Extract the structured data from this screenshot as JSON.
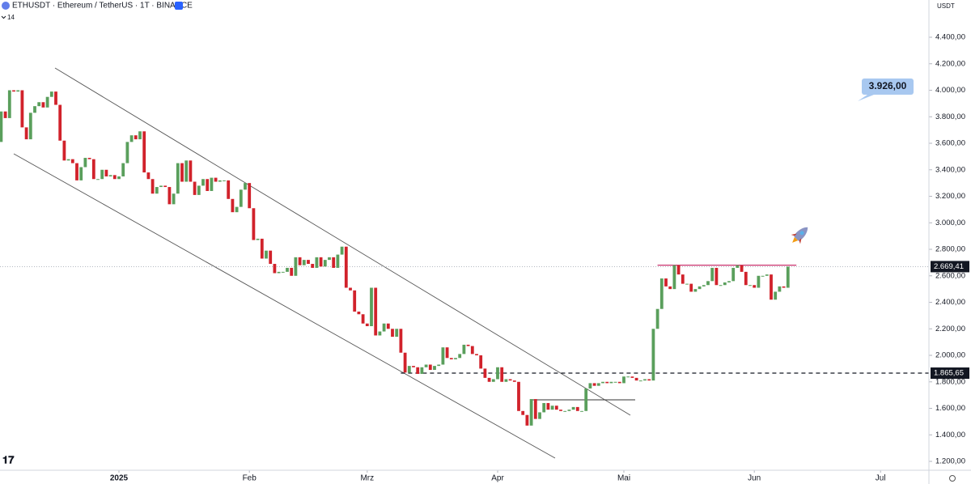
{
  "chart_data": {
    "type": "candlestick",
    "title": "ETHUSDT · Ethereum / TetherUS · 1T · BINANCE",
    "indicator_label": "14",
    "currency": "USDT",
    "up_color": "#5a9f5c",
    "down_color": "#d1222b",
    "open": [
      3610,
      3840,
      3790,
      4000,
      3990,
      4000,
      3720,
      3630,
      3830,
      3880,
      3910,
      3870,
      3950,
      3990,
      3890,
      3620,
      3470,
      3480,
      3450,
      3320,
      3420,
      3490,
      3480,
      3330,
      3330,
      3400,
      3350,
      3360,
      3330,
      3350,
      3450,
      3610,
      3660,
      3630,
      3690,
      3380,
      3330,
      3220,
      3270,
      3280,
      3270,
      3140,
      3220,
      3450,
      3310,
      3470,
      3310,
      3210,
      3280,
      3330,
      3240,
      3340,
      3310,
      3320,
      3320,
      3180,
      3080,
      3120,
      3250,
      3300,
      3110,
      2870,
      2880,
      2730,
      2790,
      2690,
      2620,
      2630,
      2630,
      2660,
      2600,
      2740,
      2680,
      2720,
      2690,
      2660,
      2740,
      2670,
      2720,
      2740,
      2660,
      2760,
      2820,
      2510,
      2490,
      2330,
      2310,
      2240,
      2220,
      2510,
      2150,
      2180,
      2240,
      2200,
      2140,
      2200,
      2020,
      1870,
      1920,
      1910,
      1860,
      1910,
      1930,
      1890,
      1920,
      1930,
      2060,
      1980,
      1970,
      1980,
      2010,
      2080,
      2070,
      2010,
      2000,
      1900,
      1830,
      1800,
      1820,
      1910,
      1800,
      1820,
      1810,
      1800,
      1580,
      1550,
      1470,
      1670,
      1520,
      1570,
      1640,
      1590,
      1620,
      1590,
      1580,
      1580,
      1590,
      1610,
      1580,
      1580,
      1750,
      1790,
      1770,
      1790,
      1800,
      1790,
      1800,
      1800,
      1790,
      1840,
      1840,
      1830,
      1810,
      1810,
      1820,
      1810,
      2200,
      2350,
      2580,
      2520,
      2500,
      2680,
      2610,
      2540,
      2540,
      2480,
      2500,
      2520,
      2530,
      2560,
      2660,
      2530,
      2530,
      2550,
      2560,
      2660,
      2680,
      2630,
      2530,
      2530,
      2510,
      2600,
      2600,
      2610,
      2420,
      2480,
      2520,
      2510
    ],
    "close": [
      3840,
      3790,
      4000,
      3990,
      4000,
      3720,
      3630,
      3830,
      3880,
      3910,
      3870,
      3950,
      3990,
      3890,
      3620,
      3470,
      3480,
      3450,
      3320,
      3420,
      3490,
      3480,
      3330,
      3330,
      3400,
      3350,
      3360,
      3330,
      3350,
      3450,
      3610,
      3660,
      3630,
      3690,
      3380,
      3330,
      3220,
      3270,
      3280,
      3270,
      3140,
      3220,
      3450,
      3310,
      3470,
      3310,
      3210,
      3280,
      3330,
      3240,
      3340,
      3310,
      3320,
      3320,
      3180,
      3080,
      3120,
      3250,
      3300,
      3110,
      2870,
      2880,
      2730,
      2790,
      2690,
      2620,
      2630,
      2630,
      2660,
      2600,
      2740,
      2680,
      2720,
      2690,
      2660,
      2740,
      2670,
      2720,
      2740,
      2660,
      2760,
      2820,
      2510,
      2490,
      2330,
      2310,
      2240,
      2220,
      2510,
      2150,
      2180,
      2240,
      2200,
      2140,
      2200,
      2020,
      1870,
      1920,
      1910,
      1860,
      1910,
      1930,
      1890,
      1920,
      1930,
      2060,
      1980,
      1970,
      1980,
      2010,
      2080,
      2070,
      2010,
      2000,
      1900,
      1830,
      1800,
      1820,
      1910,
      1800,
      1820,
      1810,
      1800,
      1580,
      1550,
      1470,
      1670,
      1520,
      1570,
      1640,
      1590,
      1620,
      1590,
      1580,
      1580,
      1590,
      1610,
      1580,
      1580,
      1750,
      1790,
      1770,
      1790,
      1800,
      1790,
      1800,
      1800,
      1790,
      1840,
      1840,
      1830,
      1810,
      1810,
      1820,
      1810,
      2200,
      2350,
      2580,
      2520,
      2500,
      2680,
      2610,
      2540,
      2540,
      2480,
      2500,
      2520,
      2530,
      2560,
      2660,
      2530,
      2530,
      2550,
      2560,
      2660,
      2680,
      2630,
      2530,
      2530,
      2510,
      2600,
      2600,
      2610,
      2420,
      2480,
      2520,
      2510,
      2669.41
    ],
    "xlim": [
      -0.27,
      220.5
    ],
    "xticks": [
      {
        "value": 28,
        "label": "2025"
      },
      {
        "value": 59,
        "label": "Feb"
      },
      {
        "value": 87,
        "label": "Mrz"
      },
      {
        "value": 118,
        "label": "Apr"
      },
      {
        "value": 148,
        "label": "Mai"
      },
      {
        "value": 179,
        "label": "Jun"
      },
      {
        "value": 209,
        "label": "Jul"
      }
    ],
    "ylim": [
      1133,
      4681
    ],
    "yticks": [
      {
        "value": 1200,
        "label": "1.200,00"
      },
      {
        "value": 1400,
        "label": "1.400,00"
      },
      {
        "value": 1600,
        "label": "1.600,00"
      },
      {
        "value": 1800,
        "label": "1.800,00"
      },
      {
        "value": 2000,
        "label": "2.000,00"
      },
      {
        "value": 2200,
        "label": "2.200,00"
      },
      {
        "value": 2400,
        "label": "2.400,00"
      },
      {
        "value": 2600,
        "label": "2.600,00"
      },
      {
        "value": 2800,
        "label": "2.800,00"
      },
      {
        "value": 3000,
        "label": "3.000,00"
      },
      {
        "value": 3200,
        "label": "3.200,00"
      },
      {
        "value": 3400,
        "label": "3.400,00"
      },
      {
        "value": 3600,
        "label": "3.600,00"
      },
      {
        "value": 3800,
        "label": "3.800,00"
      },
      {
        "value": 4000,
        "label": "4.000,00"
      },
      {
        "value": 4200,
        "label": "4.200,00"
      },
      {
        "value": 4400,
        "label": "4.400,00"
      }
    ],
    "last_price": {
      "value": 2669.41,
      "label": "2.669,41"
    },
    "support": {
      "value": 1865.65,
      "label": "1.865,65"
    },
    "resistance": 2680,
    "target_label": "3.926,00"
  }
}
